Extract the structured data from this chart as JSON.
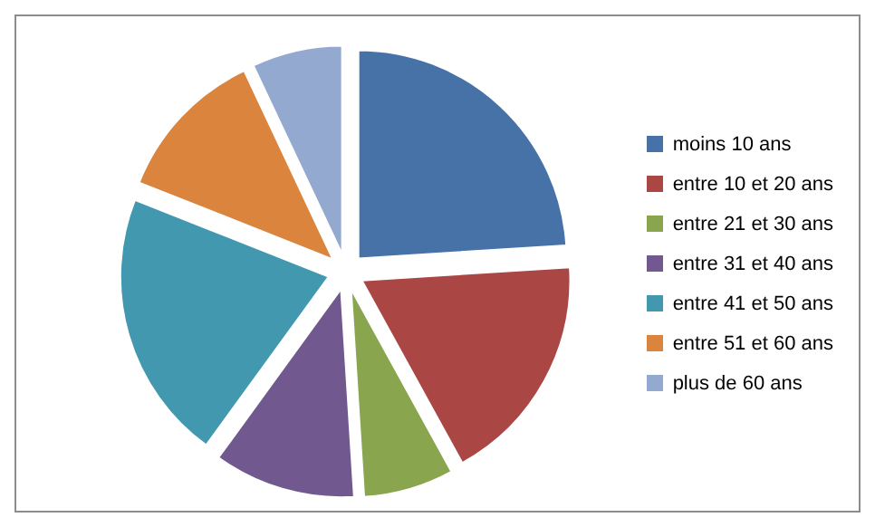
{
  "chart_data": {
    "type": "pie",
    "categories": [
      "moins 10 ans",
      "entre 10 et 20 ans",
      "entre 21 et 30 ans",
      "entre 31 et 40 ans",
      "entre 41 et 50 ans",
      "entre 51 et 60 ans",
      "plus de 60 ans"
    ],
    "values": [
      24,
      18,
      7,
      11,
      21,
      12,
      7
    ],
    "colors": [
      "#4672a8",
      "#aa4643",
      "#89a54e",
      "#71588f",
      "#4198af",
      "#db843d",
      "#93a9cf"
    ],
    "legend": "right"
  }
}
